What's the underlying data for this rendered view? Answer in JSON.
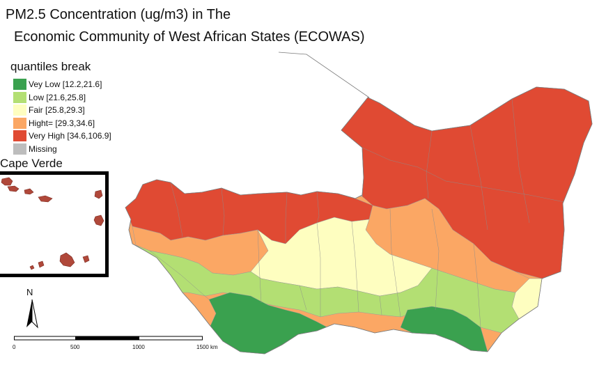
{
  "title": {
    "line1": "PM2.5 Concentration (ug/m3) in The",
    "line2": "Economic Community of West African States (ECOWAS)"
  },
  "legend": {
    "title": "quantiles break",
    "items": [
      {
        "label": "Vey Low [12.2,21.6]",
        "color": "#3aa14f"
      },
      {
        "label": "Low [21.6,25.8]",
        "color": "#b3df73"
      },
      {
        "label": "Fair [25.8,29.3]",
        "color": "#fefec0"
      },
      {
        "label": "Hight= [29.3,34.6]",
        "color": "#fba764"
      },
      {
        "label": "Very High [34.6,106.9]",
        "color": "#e04a33"
      },
      {
        "label": "Missing",
        "color": "#bdbdbd"
      }
    ]
  },
  "inset": {
    "label": "Cape Verde"
  },
  "north_arrow": {
    "label": "N"
  },
  "scale_bar": {
    "ticks": [
      "0",
      "500",
      "1000",
      "1500 km"
    ]
  }
}
